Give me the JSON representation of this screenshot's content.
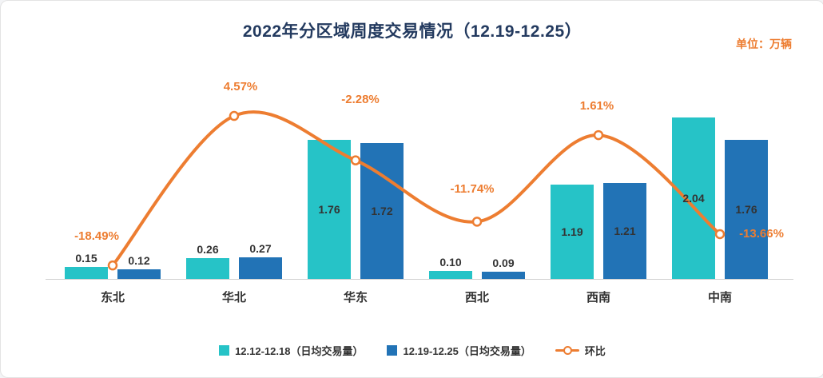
{
  "title": "2022年分区域周度交易情况（12.19-12.25）",
  "unit_label": "单位：万辆",
  "colors": {
    "series1": "#26c3c7",
    "series2": "#2273b6",
    "line": "#ed7d31",
    "title": "#233a5f"
  },
  "chart_data": {
    "type": "bar+line",
    "title": "2022年分区域周度交易情况（12.19-12.25）",
    "unit": "万辆",
    "categories": [
      "东北",
      "华北",
      "华东",
      "西北",
      "西南",
      "中南"
    ],
    "series": [
      {
        "name": "12.12-12.18（日均交易量）",
        "values": [
          0.15,
          0.26,
          1.76,
          0.1,
          1.19,
          2.04
        ]
      },
      {
        "name": "12.19-12.25（日均交易量）",
        "values": [
          0.12,
          0.27,
          1.72,
          0.09,
          1.21,
          1.76
        ]
      }
    ],
    "line_series": {
      "name": "环比",
      "values_pct": [
        -18.49,
        4.57,
        -2.28,
        -11.74,
        1.61,
        -13.66
      ],
      "labels": [
        "-18.49%",
        "4.57%",
        "-2.28%",
        "-11.74%",
        "1.61%",
        "-13.66%"
      ]
    },
    "ylim": [
      0,
      2.2
    ],
    "y2lim": [
      -25,
      10
    ],
    "grid": false,
    "legend_position": "bottom"
  }
}
